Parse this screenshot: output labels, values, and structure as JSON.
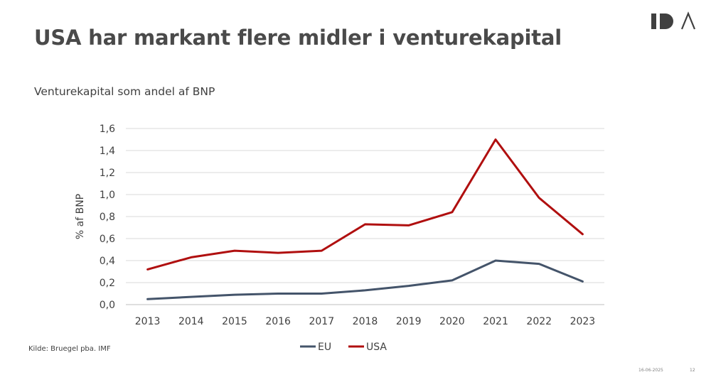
{
  "slide": {
    "title": "USA har markant flere midler i venturekapital",
    "source": "Kilde: Bruegel pba. IMF",
    "date": "16-06-2025",
    "page_number": "12",
    "logo_icon": "ida-logo-icon"
  },
  "chart_data": {
    "type": "line",
    "title": "Venturekapital som andel af BNP",
    "ylabel": "% af BNP",
    "xlabel": "",
    "x": [
      "2013",
      "2014",
      "2015",
      "2016",
      "2017",
      "2018",
      "2019",
      "2020",
      "2021",
      "2022",
      "2023"
    ],
    "ylim": [
      0,
      1.6
    ],
    "yticks": [
      0.0,
      0.2,
      0.4,
      0.6,
      0.8,
      1.0,
      1.2,
      1.4,
      1.6
    ],
    "ytick_labels": [
      "0,0",
      "0,2",
      "0,4",
      "0,6",
      "0,8",
      "1,0",
      "1,2",
      "1,4",
      "1,6"
    ],
    "grid": true,
    "legend_position": "bottom",
    "series": [
      {
        "name": "EU",
        "color": "#44546a",
        "values": [
          0.05,
          0.07,
          0.09,
          0.1,
          0.1,
          0.13,
          0.17,
          0.22,
          0.4,
          0.37,
          0.21
        ]
      },
      {
        "name": "USA",
        "color": "#b00f0f",
        "values": [
          0.32,
          0.43,
          0.49,
          0.47,
          0.49,
          0.73,
          0.72,
          0.84,
          1.5,
          0.97,
          0.64
        ]
      }
    ]
  }
}
